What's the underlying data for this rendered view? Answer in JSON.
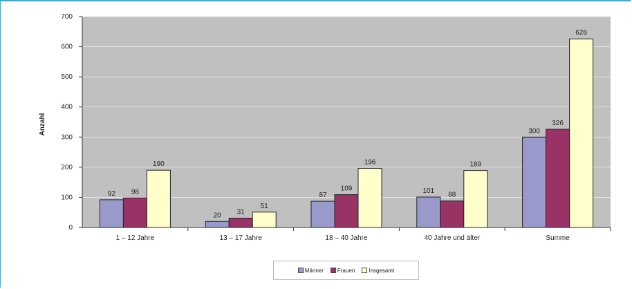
{
  "chart_data": {
    "type": "bar",
    "title": "",
    "xlabel": "",
    "ylabel": "Anzahl",
    "ylim": [
      0,
      700
    ],
    "yticks": [
      0,
      100,
      200,
      300,
      400,
      500,
      600,
      700
    ],
    "grid": true,
    "legend_position": "bottom",
    "categories": [
      "1 – 12 Jahre",
      "13 – 17 Jahre",
      "18 – 40 Jahre",
      "40 Jahre und älter",
      "Summe"
    ],
    "series": [
      {
        "name": "Männer",
        "color": "#9999cc",
        "values": [
          92,
          20,
          87,
          101,
          300
        ]
      },
      {
        "name": "Frauen",
        "color": "#993366",
        "values": [
          98,
          31,
          109,
          88,
          326
        ]
      },
      {
        "name": "Insgesamt",
        "color": "#ffffcc",
        "values": [
          190,
          51,
          196,
          189,
          626
        ]
      }
    ],
    "plot_background": "#c0c0c0"
  }
}
